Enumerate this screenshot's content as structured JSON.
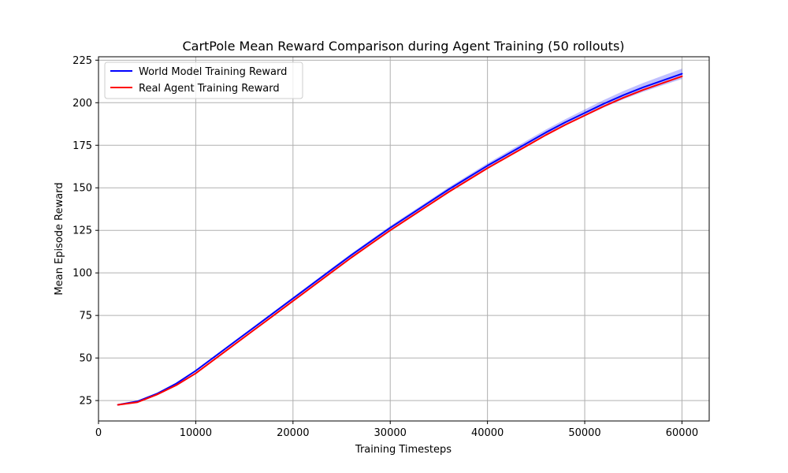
{
  "chart_data": {
    "type": "line",
    "title": "CartPole Mean Reward Comparison during Agent Training (50 rollouts)",
    "xlabel": "Training Timesteps",
    "ylabel": "Mean Episode Reward",
    "xlim": [
      0,
      62800
    ],
    "ylim": [
      13,
      227
    ],
    "xticks": [
      0,
      10000,
      20000,
      30000,
      40000,
      50000,
      60000
    ],
    "yticks": [
      25,
      50,
      75,
      100,
      125,
      150,
      175,
      200,
      225
    ],
    "grid": true,
    "legend_position": "top-left",
    "x": [
      2000,
      4000,
      6000,
      8000,
      10000,
      12000,
      14000,
      16000,
      18000,
      20000,
      22000,
      24000,
      26000,
      28000,
      30000,
      32000,
      34000,
      36000,
      38000,
      40000,
      42000,
      44000,
      46000,
      48000,
      50000,
      52000,
      54000,
      56000,
      58000,
      60000
    ],
    "series": [
      {
        "name": "World Model Training Reward",
        "color": "#0000ff",
        "values": [
          22.5,
          24.5,
          29.0,
          35.0,
          42.5,
          51.0,
          59.5,
          68.0,
          76.5,
          85.0,
          93.5,
          102.0,
          110.5,
          118.5,
          126.5,
          134.0,
          141.5,
          149.0,
          156.0,
          163.0,
          169.5,
          176.0,
          182.5,
          188.5,
          194.0,
          199.5,
          204.5,
          209.0,
          213.0,
          217.0
        ],
        "band": {
          "color": "#0000ff",
          "opacity": 0.25,
          "half_width": [
            0.2,
            0.3,
            0.3,
            0.4,
            0.5,
            0.6,
            0.6,
            0.7,
            0.7,
            0.8,
            0.8,
            0.9,
            0.9,
            1.0,
            1.0,
            1.1,
            1.1,
            1.2,
            1.3,
            1.4,
            1.5,
            1.6,
            1.7,
            1.8,
            2.0,
            2.2,
            2.4,
            2.6,
            2.8,
            3.0
          ]
        }
      },
      {
        "name": "Real Agent Training Reward",
        "color": "#ff0000",
        "values": [
          22.5,
          24.0,
          28.5,
          34.0,
          41.0,
          49.5,
          58.0,
          66.5,
          75.0,
          83.5,
          92.0,
          100.5,
          109.0,
          117.0,
          125.0,
          132.5,
          140.0,
          147.5,
          154.5,
          161.5,
          168.0,
          174.5,
          181.0,
          187.0,
          192.5,
          198.0,
          203.0,
          207.5,
          211.5,
          215.5
        ]
      }
    ]
  }
}
